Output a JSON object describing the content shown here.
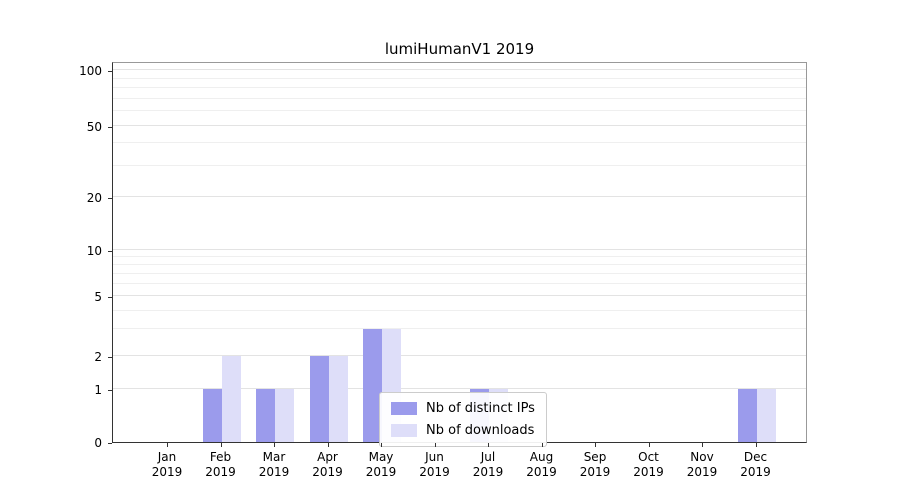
{
  "chart_data": {
    "type": "bar",
    "title": "lumiHumanV1 2019",
    "categories": [
      "Jan",
      "Feb",
      "Mar",
      "Apr",
      "May",
      "Jun",
      "Jul",
      "Aug",
      "Sep",
      "Oct",
      "Nov",
      "Dec"
    ],
    "category_year": "2019",
    "series": [
      {
        "name": "Nb of distinct IPs",
        "color": "#9b9bec",
        "values": [
          0,
          1,
          1,
          2,
          3,
          0,
          1,
          0,
          0,
          0,
          0,
          1
        ]
      },
      {
        "name": "Nb of downloads",
        "color": "#dedef9",
        "values": [
          0,
          2,
          1,
          2,
          3,
          0,
          1,
          0,
          0,
          0,
          0,
          1
        ]
      }
    ],
    "yticks": [
      0,
      1,
      2,
      5,
      10,
      20,
      50,
      100
    ],
    "yscale": "log",
    "ylim": [
      0,
      110
    ],
    "grid": true,
    "legend_position": "bottom-center"
  }
}
